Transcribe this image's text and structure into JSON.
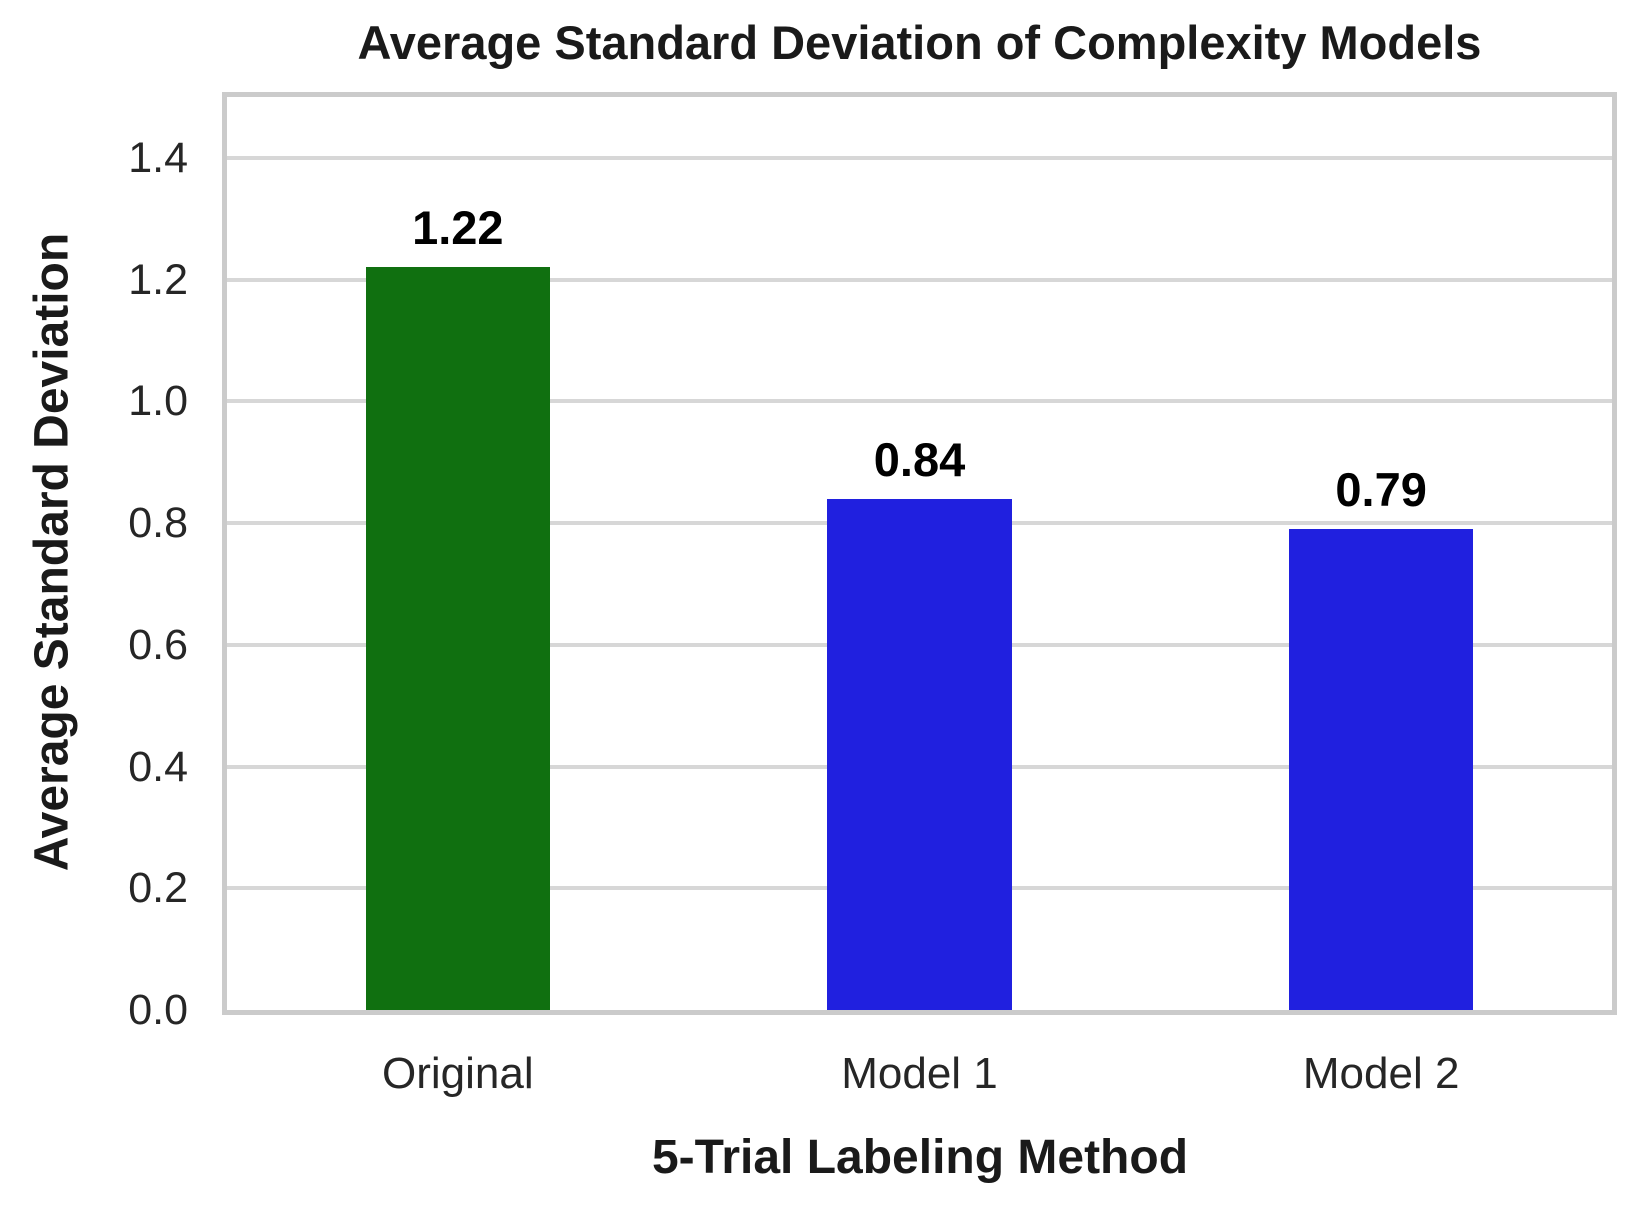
{
  "chart_data": {
    "type": "bar",
    "title": "Average Standard Deviation of Complexity Models",
    "xlabel": "5-Trial Labeling Method",
    "ylabel": "Average Standard Deviation",
    "categories": [
      "Original",
      "Model 1",
      "Model 2"
    ],
    "values": [
      1.22,
      0.84,
      0.79
    ],
    "value_labels": [
      "1.22",
      "0.84",
      "0.79"
    ],
    "bar_colors": [
      "#107010",
      "#2020DF",
      "#2020DF"
    ],
    "bar_width_ratio": 0.4,
    "ylim": [
      0,
      1.5
    ],
    "yticks": [
      "0.0",
      "0.2",
      "0.4",
      "0.6",
      "0.8",
      "1.0",
      "1.2",
      "1.4"
    ],
    "grid": "horizontal",
    "legend": "none",
    "colors": {
      "green_bar": "#107010",
      "blue_bar": "#2020DF",
      "grid_line": "#d7d7d7",
      "spine": "#cbcbcb",
      "tick_text": "#262626",
      "label_text": "#1a1a1a",
      "background": "#ffffff"
    }
  }
}
